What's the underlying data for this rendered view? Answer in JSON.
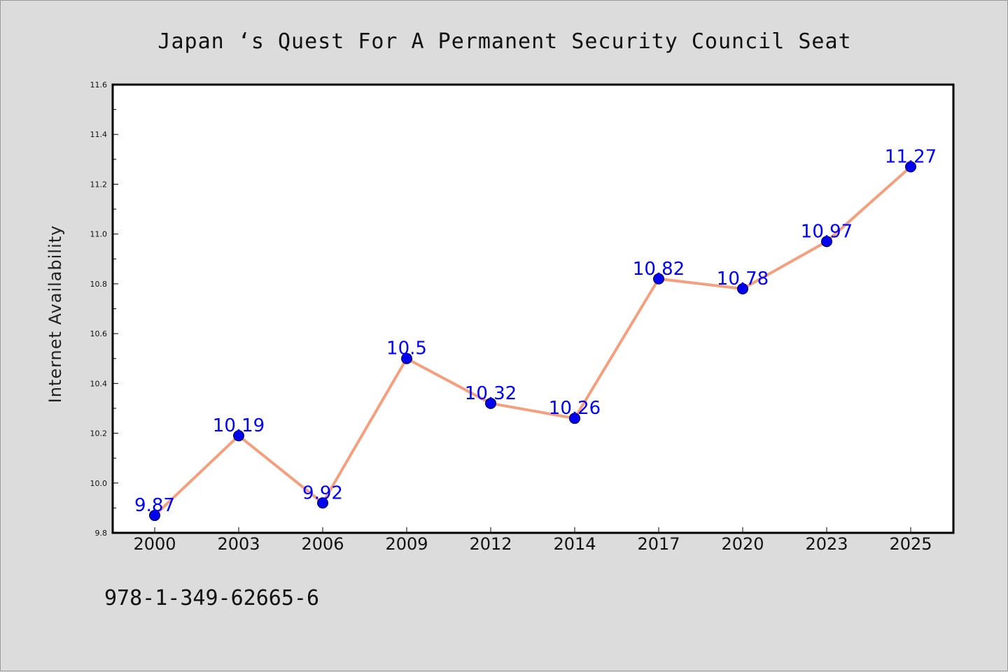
{
  "chart_data": {
    "type": "line",
    "title": "Japan ‘s Quest For A Permanent Security Council Seat",
    "xlabel": "",
    "ylabel": "Internet Availability",
    "categories": [
      "2000",
      "2003",
      "2006",
      "2009",
      "2012",
      "2014",
      "2017",
      "2020",
      "2023",
      "2025"
    ],
    "series": [
      {
        "values": [
          9.87,
          10.19,
          9.92,
          10.5,
          10.32,
          10.26,
          10.82,
          10.78,
          10.97,
          11.27
        ]
      }
    ],
    "data_labels": [
      "9.87",
      "10.19",
      "9.92",
      "10.5",
      "10.32",
      "10.26",
      "10.82",
      "10.78",
      "10.97",
      "11.27"
    ],
    "ylim": [
      9.8,
      11.6
    ],
    "yticks": [
      "9.8",
      "10.0",
      "10.2",
      "10.4",
      "10.6",
      "10.8",
      "11.0",
      "11.2",
      "11.4",
      "11.6"
    ],
    "grid": false,
    "legend": "none",
    "colors": {
      "line": "#f4a07e",
      "marker": "#0000ee",
      "data_label": "#0000ff",
      "background": "#dcdcdc",
      "plot_background": "#ffffff"
    }
  },
  "footer_text": "978-1-349-62665-6"
}
